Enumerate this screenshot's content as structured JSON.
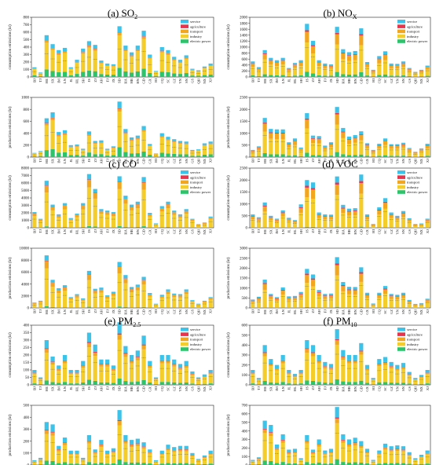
{
  "colors": {
    "service": "#3cc3ea",
    "agriculture": "#e8354e",
    "transport": "#f2a61f",
    "industry": "#f4cd2a",
    "electric power": "#2cc36a"
  },
  "legend_labels": [
    "service",
    "agriculture",
    "transport",
    "industry",
    "electric power"
  ],
  "ylabels": {
    "consumption": "consumption emissions (kt)",
    "production": "production emissions (kt)"
  },
  "provinces": [
    "BJ",
    "TJ",
    "HE",
    "SX",
    "IM",
    "LN",
    "JL",
    "HL",
    "SH",
    "JS",
    "ZJ",
    "AH",
    "FJ",
    "JX",
    "SD",
    "HA",
    "HB",
    "HN",
    "GD",
    "GX",
    "HI",
    "CQ",
    "SC",
    "GZ",
    "YN",
    "SN",
    "GS",
    "QH",
    "NX",
    "XJ"
  ],
  "chart_data": [
    {
      "id": "a",
      "type": "bar",
      "stacked": true,
      "title_prefix": "(a) SO",
      "title_sub": "2",
      "series_names": [
        "electric power",
        "industry",
        "transport",
        "agriculture",
        "service"
      ],
      "consumption": {
        "ylim": [
          0,
          800
        ],
        "ticks": [
          0,
          100,
          200,
          300,
          400,
          500,
          600,
          700,
          800
        ],
        "totals": [
          130,
          60,
          560,
          440,
          360,
          390,
          130,
          230,
          380,
          480,
          430,
          220,
          180,
          170,
          680,
          420,
          330,
          420,
          620,
          300,
          80,
          400,
          360,
          270,
          230,
          290,
          110,
          90,
          140,
          180
        ]
      },
      "production": {
        "ylim": [
          0,
          1000
        ],
        "ticks": [
          0,
          200,
          400,
          600,
          800,
          1000
        ],
        "totals": [
          70,
          100,
          650,
          750,
          420,
          450,
          200,
          210,
          140,
          430,
          270,
          280,
          140,
          180,
          930,
          470,
          330,
          360,
          520,
          220,
          60,
          400,
          340,
          300,
          270,
          260,
          120,
          130,
          230,
          260
        ]
      }
    },
    {
      "id": "b",
      "type": "bar",
      "stacked": true,
      "title_prefix": "(b) NO",
      "title_sub": "X",
      "series_names": [
        "electric power",
        "industry",
        "transport",
        "agriculture",
        "service"
      ],
      "consumption": {
        "ylim": [
          0,
          2000
        ],
        "ticks": [
          0,
          200,
          400,
          600,
          800,
          1000,
          1200,
          1400,
          1600,
          1800,
          2000
        ],
        "totals": [
          520,
          330,
          900,
          640,
          560,
          640,
          300,
          470,
          560,
          1780,
          1210,
          560,
          450,
          420,
          1680,
          930,
          830,
          870,
          1630,
          500,
          240,
          700,
          860,
          450,
          440,
          520,
          300,
          170,
          240,
          380
        ]
      },
      "production": {
        "ylim": [
          0,
          2500
        ],
        "ticks": [
          0,
          500,
          1000,
          1500,
          2000,
          2500
        ],
        "totals": [
          300,
          450,
          1640,
          1180,
          1160,
          1160,
          620,
          780,
          400,
          1840,
          900,
          880,
          480,
          620,
          2100,
          1220,
          860,
          920,
          1080,
          580,
          300,
          560,
          780,
          540,
          540,
          600,
          380,
          220,
          360,
          560
        ]
      }
    },
    {
      "id": "c",
      "type": "bar",
      "stacked": true,
      "title_prefix": "(c) CO",
      "title_sub": "",
      "series_names": [
        "electric power",
        "industry",
        "transport",
        "agriculture",
        "service"
      ],
      "consumption": {
        "ylim": [
          0,
          8000
        ],
        "ticks": [
          0,
          1000,
          2000,
          3000,
          4000,
          5000,
          6000,
          7000,
          8000
        ],
        "totals": [
          2100,
          1200,
          6300,
          3100,
          1800,
          3300,
          1300,
          1900,
          3300,
          7200,
          5200,
          2500,
          2300,
          2100,
          6900,
          4300,
          3100,
          3500,
          6800,
          2000,
          600,
          2900,
          3500,
          2300,
          1800,
          2500,
          1200,
          500,
          700,
          1500
        ]
      },
      "production": {
        "ylim": [
          0,
          10000
        ],
        "ticks": [
          0,
          2000,
          4000,
          6000,
          8000,
          10000
        ],
        "totals": [
          900,
          1200,
          8800,
          4700,
          3300,
          3800,
          1800,
          2300,
          1600,
          6200,
          3200,
          3400,
          2100,
          2700,
          7700,
          5500,
          3500,
          3900,
          5200,
          2500,
          700,
          2200,
          3100,
          2400,
          2300,
          3100,
          1300,
          700,
          1200,
          1800
        ]
      }
    },
    {
      "id": "d",
      "type": "bar",
      "stacked": true,
      "title_prefix": "(d) VOC",
      "title_sub": "",
      "series_names": [
        "electric power",
        "industry",
        "transport",
        "agriculture",
        "service"
      ],
      "consumption": {
        "ylim": [
          0,
          2500
        ],
        "ticks": [
          0,
          500,
          1000,
          1500,
          2000,
          2500
        ],
        "totals": [
          560,
          440,
          1060,
          500,
          380,
          730,
          420,
          320,
          980,
          2000,
          1900,
          640,
          560,
          550,
          2150,
          960,
          800,
          820,
          2230,
          560,
          160,
          860,
          1240,
          640,
          500,
          700,
          400,
          160,
          180,
          380
        ]
      },
      "production": {
        "ylim": [
          0,
          3000
        ],
        "ticks": [
          0,
          500,
          1000,
          1500,
          2000,
          2500,
          3000
        ],
        "totals": [
          420,
          560,
          1420,
          700,
          540,
          1030,
          580,
          600,
          800,
          1960,
          1680,
          900,
          700,
          720,
          2550,
          1300,
          1060,
          1050,
          2040,
          760,
          220,
          760,
          1100,
          700,
          660,
          760,
          400,
          200,
          240,
          460
        ]
      }
    },
    {
      "id": "e",
      "type": "bar",
      "stacked": true,
      "title_prefix": "(e) PM",
      "title_sub": "2.5",
      "series_names": [
        "electric power",
        "industry",
        "transport",
        "agriculture",
        "service"
      ],
      "consumption": {
        "ylim": [
          0,
          400
        ],
        "ticks": [
          0,
          50,
          100,
          150,
          200,
          250,
          300,
          350,
          400
        ],
        "totals": [
          100,
          50,
          300,
          190,
          130,
          200,
          100,
          100,
          160,
          350,
          270,
          170,
          170,
          130,
          420,
          260,
          200,
          230,
          330,
          160,
          50,
          200,
          200,
          170,
          140,
          160,
          90,
          50,
          70,
          100
        ]
      },
      "production": {
        "ylim": [
          0,
          500
        ],
        "ticks": [
          0,
          100,
          200,
          300,
          400,
          500
        ],
        "totals": [
          40,
          60,
          360,
          340,
          160,
          230,
          120,
          120,
          60,
          250,
          130,
          210,
          120,
          140,
          460,
          250,
          210,
          220,
          190,
          130,
          40,
          120,
          170,
          150,
          160,
          160,
          100,
          50,
          80,
          120
        ]
      }
    },
    {
      "id": "f",
      "type": "bar",
      "stacked": true,
      "title_prefix": "(f) PM",
      "title_sub": "10",
      "series_names": [
        "electric power",
        "industry",
        "transport",
        "agriculture",
        "service"
      ],
      "consumption": {
        "ylim": [
          0,
          600
        ],
        "ticks": [
          0,
          100,
          200,
          300,
          400,
          500,
          600
        ],
        "totals": [
          150,
          70,
          400,
          260,
          200,
          300,
          150,
          110,
          150,
          450,
          400,
          300,
          230,
          210,
          560,
          350,
          300,
          300,
          420,
          200,
          70,
          260,
          280,
          230,
          200,
          220,
          130,
          70,
          100,
          150
        ]
      },
      "production": {
        "ylim": [
          0,
          700
        ],
        "ticks": [
          0,
          100,
          200,
          300,
          400,
          500,
          600,
          700
        ],
        "totals": [
          60,
          90,
          520,
          470,
          240,
          360,
          180,
          190,
          80,
          350,
          180,
          300,
          170,
          190,
          680,
          360,
          300,
          320,
          280,
          190,
          60,
          170,
          250,
          220,
          230,
          220,
          150,
          80,
          120,
          170
        ]
      }
    }
  ]
}
